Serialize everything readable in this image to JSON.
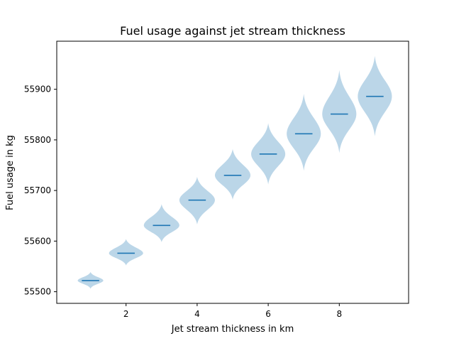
{
  "chart_data": {
    "type": "violin",
    "title": "Fuel usage against jet stream thickness",
    "xlabel": "Jet stream thickness in km",
    "ylabel": "Fuel usage in kg",
    "xlim": [
      0.05,
      9.95
    ],
    "ylim": [
      55477,
      55995
    ],
    "xticks": [
      2,
      4,
      6,
      8
    ],
    "yticks": [
      55500,
      55600,
      55700,
      55800,
      55900
    ],
    "violin_color": "#1f77b4",
    "violins": [
      {
        "x": 1,
        "median": 55522,
        "min": 55506,
        "max": 55539,
        "max_half_width": 0.36
      },
      {
        "x": 2,
        "median": 55576,
        "min": 55552,
        "max": 55604,
        "max_half_width": 0.48
      },
      {
        "x": 3,
        "median": 55631,
        "min": 55598,
        "max": 55673,
        "max_half_width": 0.5
      },
      {
        "x": 4,
        "median": 55681,
        "min": 55633,
        "max": 55727,
        "max_half_width": 0.5
      },
      {
        "x": 5,
        "median": 55730,
        "min": 55682,
        "max": 55782,
        "max_half_width": 0.5
      },
      {
        "x": 6,
        "median": 55772,
        "min": 55712,
        "max": 55833,
        "max_half_width": 0.48
      },
      {
        "x": 7,
        "median": 55812,
        "min": 55739,
        "max": 55891,
        "max_half_width": 0.48
      },
      {
        "x": 8,
        "median": 55851,
        "min": 55774,
        "max": 55938,
        "max_half_width": 0.48
      },
      {
        "x": 9,
        "median": 55886,
        "min": 55807,
        "max": 55966,
        "max_half_width": 0.48
      }
    ]
  }
}
